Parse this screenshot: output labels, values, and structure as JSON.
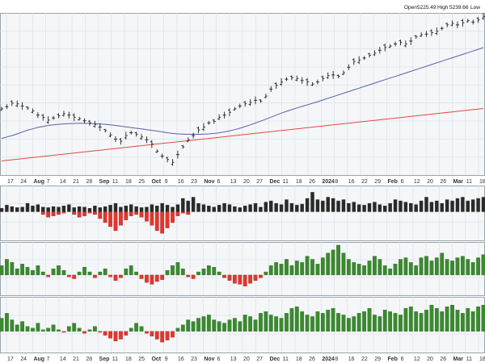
{
  "chart_data": {
    "type": "ohlc-multi-panel",
    "header": {
      "open_label": "Open",
      "open_value": "5225.49",
      "high_label": "High",
      "high_value": "5239.66",
      "low_label": "Low"
    },
    "x_axis": {
      "labels": [
        {
          "text": "17",
          "bold": false
        },
        {
          "text": "24",
          "bold": false
        },
        {
          "text": "Aug",
          "bold": true
        },
        {
          "text": "7",
          "bold": false
        },
        {
          "text": "14",
          "bold": false
        },
        {
          "text": "21",
          "bold": false
        },
        {
          "text": "28",
          "bold": false
        },
        {
          "text": "Sep",
          "bold": true
        },
        {
          "text": "11",
          "bold": false
        },
        {
          "text": "18",
          "bold": false
        },
        {
          "text": "25",
          "bold": false
        },
        {
          "text": "Oct",
          "bold": true
        },
        {
          "text": "9",
          "bold": false
        },
        {
          "text": "16",
          "bold": false
        },
        {
          "text": "23",
          "bold": false
        },
        {
          "text": "Nov",
          "bold": true
        },
        {
          "text": "6",
          "bold": false
        },
        {
          "text": "13",
          "bold": false
        },
        {
          "text": "20",
          "bold": false
        },
        {
          "text": "27",
          "bold": false
        },
        {
          "text": "Dec",
          "bold": true
        },
        {
          "text": "11",
          "bold": false
        },
        {
          "text": "18",
          "bold": false
        },
        {
          "text": "26",
          "bold": false
        },
        {
          "text": "2024",
          "bold": true
        },
        {
          "text": "8",
          "bold": false
        },
        {
          "text": "16",
          "bold": false
        },
        {
          "text": "22",
          "bold": false
        },
        {
          "text": "29",
          "bold": false
        },
        {
          "text": "Feb",
          "bold": true
        },
        {
          "text": "6",
          "bold": false
        },
        {
          "text": "12",
          "bold": false
        },
        {
          "text": "20",
          "bold": false
        },
        {
          "text": "26",
          "bold": false
        },
        {
          "text": "Mar",
          "bold": true
        },
        {
          "text": "11",
          "bold": false
        },
        {
          "text": "18",
          "bold": false
        }
      ]
    },
    "price_series": [
      4550,
      4565,
      4590,
      4585,
      4570,
      4555,
      4535,
      4505,
      4490,
      4470,
      4485,
      4500,
      4515,
      4505,
      4490,
      4480,
      4465,
      4450,
      4440,
      4420,
      4395,
      4365,
      4335,
      4320,
      4360,
      4380,
      4370,
      4350,
      4330,
      4300,
      4250,
      4215,
      4190,
      4170,
      4225,
      4280,
      4330,
      4360,
      4400,
      4420,
      4450,
      4460,
      4490,
      4505,
      4525,
      4550,
      4570,
      4585,
      4595,
      4610,
      4605,
      4640,
      4690,
      4715,
      4740,
      4760,
      4770,
      4765,
      4750,
      4740,
      4725,
      4740,
      4765,
      4785,
      4790,
      4780,
      4805,
      4845,
      4885,
      4895,
      4910,
      4930,
      4945,
      4965,
      4985,
      4995,
      5010,
      5020,
      5010,
      5030,
      5060,
      5075,
      5080,
      5090,
      5100,
      5120,
      5145,
      5155,
      5145,
      5160,
      5175,
      5165,
      5180,
      5205
    ],
    "ma_slow": [
      4180,
      4184,
      4188,
      4192,
      4196,
      4200,
      4204,
      4208,
      4212,
      4216,
      4220,
      4224,
      4228,
      4232,
      4236,
      4240,
      4244,
      4248,
      4252,
      4256,
      4260,
      4264,
      4268,
      4272,
      4276,
      4280,
      4284,
      4288,
      4292,
      4296,
      4300,
      4304,
      4308,
      4312,
      4316,
      4320,
      4324,
      4328,
      4332,
      4336,
      4340,
      4344,
      4348,
      4352,
      4356,
      4360,
      4364,
      4368,
      4372,
      4376,
      4380,
      4384,
      4388,
      4392,
      4396,
      4400,
      4404,
      4408,
      4412,
      4416,
      4420,
      4424,
      4428,
      4432,
      4436,
      4440,
      4444,
      4448,
      4452,
      4456,
      4460,
      4464,
      4468,
      4472,
      4476,
      4480,
      4484,
      4488,
      4492,
      4496,
      4500,
      4504,
      4508,
      4512,
      4516,
      4520,
      4524,
      4528,
      4532,
      4536,
      4540,
      4544,
      4548,
      4552
    ],
    "ma_fast": [
      4340,
      4350,
      4360,
      4372,
      4385,
      4398,
      4408,
      4418,
      4425,
      4432,
      4436,
      4440,
      4443,
      4445,
      4446,
      4447,
      4447,
      4446,
      4444,
      4442,
      4440,
      4436,
      4432,
      4427,
      4422,
      4417,
      4412,
      4407,
      4402,
      4397,
      4392,
      4386,
      4380,
      4375,
      4372,
      4370,
      4369,
      4369,
      4369,
      4370,
      4372,
      4375,
      4380,
      4386,
      4393,
      4402,
      4412,
      4424,
      4436,
      4449,
      4462,
      4476,
      4490,
      4505,
      4519,
      4532,
      4544,
      4556,
      4567,
      4578,
      4589,
      4600,
      4612,
      4624,
      4636,
      4648,
      4660,
      4672,
      4684,
      4696,
      4708,
      4720,
      4732,
      4744,
      4756,
      4768,
      4780,
      4792,
      4804,
      4816,
      4828,
      4840,
      4852,
      4864,
      4876,
      4888,
      4900,
      4912,
      4924,
      4936,
      4948,
      4960,
      4972,
      4984
    ],
    "price_ylim": [
      4080,
      5230
    ],
    "volume": [
      0.15,
      0.28,
      0.22,
      0.18,
      0.2,
      0.35,
      0.25,
      0.3,
      0.2,
      0.18,
      0.22,
      0.2,
      0.25,
      0.3,
      0.18,
      0.22,
      0.2,
      0.15,
      0.25,
      0.18,
      0.22,
      0.28,
      0.35,
      0.2,
      0.25,
      0.3,
      0.22,
      0.18,
      0.2,
      0.3,
      0.25,
      0.35,
      0.28,
      0.2,
      0.3,
      0.55,
      0.45,
      0.6,
      0.35,
      0.3,
      0.25,
      0.2,
      0.28,
      0.35,
      0.3,
      0.22,
      0.18,
      0.25,
      0.3,
      0.35,
      0.2,
      0.4,
      0.45,
      0.35,
      0.3,
      0.5,
      0.35,
      0.28,
      0.32,
      0.55,
      0.8,
      0.5,
      0.45,
      0.6,
      0.55,
      0.45,
      0.5,
      0.35,
      0.4,
      0.3,
      0.28,
      0.35,
      0.4,
      0.3,
      0.25,
      0.35,
      0.5,
      0.45,
      0.4,
      0.35,
      0.3,
      0.45,
      0.6,
      0.4,
      0.45,
      0.35,
      0.5,
      0.45,
      0.55,
      0.6,
      0.45,
      0.5,
      0.55,
      0.6
    ],
    "volume_red": [
      0,
      0,
      0,
      0,
      0,
      0,
      0,
      0,
      0.1,
      0.2,
      0.15,
      0.1,
      0.05,
      0,
      0.1,
      0.2,
      0.15,
      0.05,
      0.1,
      0.25,
      0.4,
      0.55,
      0.7,
      0.5,
      0.3,
      0.15,
      0.1,
      0.2,
      0.35,
      0.5,
      0.7,
      0.8,
      0.6,
      0.4,
      0.15,
      0.05,
      0.1,
      0,
      0,
      0,
      0,
      0,
      0,
      0,
      0,
      0,
      0,
      0,
      0,
      0,
      0,
      0,
      0,
      0,
      0,
      0,
      0,
      0,
      0,
      0,
      0,
      0,
      0,
      0,
      0,
      0,
      0,
      0,
      0,
      0,
      0,
      0,
      0,
      0,
      0,
      0,
      0,
      0,
      0,
      0,
      0,
      0,
      0,
      0,
      0,
      0,
      0,
      0,
      0,
      0,
      0,
      0,
      0,
      0
    ],
    "osc1": [
      0.3,
      0.5,
      0.4,
      0.2,
      0.35,
      0.25,
      0.15,
      0.3,
      0.1,
      -0.1,
      0.2,
      0.3,
      0.15,
      -0.1,
      -0.2,
      0.1,
      0.25,
      0.1,
      -0.15,
      0.1,
      0.2,
      -0.1,
      -0.3,
      -0.15,
      0.2,
      0.3,
      0.1,
      -0.2,
      -0.4,
      -0.5,
      -0.35,
      -0.25,
      0.15,
      0.3,
      0.4,
      0.2,
      -0.1,
      -0.2,
      0.1,
      0.2,
      0.3,
      0.25,
      0.1,
      -0.15,
      -0.3,
      -0.45,
      -0.5,
      -0.6,
      -0.45,
      -0.3,
      -0.15,
      0.1,
      0.3,
      0.4,
      0.35,
      0.5,
      0.3,
      0.45,
      0.4,
      0.6,
      0.5,
      0.35,
      0.55,
      0.7,
      0.8,
      0.95,
      0.7,
      0.5,
      0.4,
      0.35,
      0.3,
      0.45,
      0.6,
      0.5,
      0.3,
      0.2,
      0.35,
      0.5,
      0.55,
      0.4,
      0.3,
      0.55,
      0.6,
      0.45,
      0.55,
      0.7,
      0.5,
      0.45,
      0.55,
      0.6,
      0.5,
      0.4,
      0.55,
      0.65
    ],
    "osc2": [
      0.4,
      0.55,
      0.35,
      0.2,
      0.3,
      0.15,
      0.1,
      0.25,
      0.05,
      0.1,
      0.2,
      0.05,
      -0.05,
      0.15,
      0.25,
      0.1,
      -0.1,
      0.05,
      0.15,
      -0.05,
      -0.2,
      -0.35,
      -0.5,
      -0.4,
      -0.2,
      0.1,
      0.25,
      0.15,
      -0.1,
      -0.25,
      -0.4,
      -0.55,
      -0.45,
      -0.3,
      0.1,
      0.2,
      0.35,
      0.3,
      0.4,
      0.45,
      0.5,
      0.35,
      0.3,
      0.25,
      0.35,
      0.4,
      0.3,
      0.5,
      0.45,
      0.35,
      0.55,
      0.6,
      0.5,
      0.45,
      0.4,
      0.55,
      0.7,
      0.75,
      0.6,
      0.5,
      0.45,
      0.6,
      0.55,
      0.65,
      0.7,
      0.55,
      0.5,
      0.4,
      0.45,
      0.55,
      0.6,
      0.7,
      0.5,
      0.45,
      0.65,
      0.6,
      0.55,
      0.5,
      0.7,
      0.75,
      0.6,
      0.55,
      0.65,
      0.8,
      0.7,
      0.6,
      0.75,
      0.8,
      0.65,
      0.55,
      0.7,
      0.6,
      0.75,
      0.8
    ],
    "colors": {
      "price_bar": "#222222",
      "ma_fast": "#5a5fa8",
      "ma_slow": "#e04a3f",
      "up": "#3a8a2e",
      "up_edge": "#1f5c18",
      "down": "#e3362f",
      "down_edge": "#8a1c18",
      "volume_bar": "#2a2a2a",
      "grid": "#d6dee6",
      "panel_bg": "#f4f6f8",
      "panel_border": "#9aa4ad"
    }
  }
}
